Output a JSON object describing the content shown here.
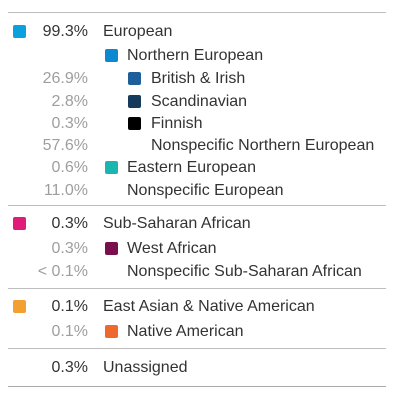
{
  "groups": [
    {
      "color": "#0aa1dc",
      "pct": "99.3%",
      "label": "European",
      "subs": [
        {
          "pct": "",
          "label": "Northern European",
          "color": "#0b88d0",
          "level": 1
        },
        {
          "pct": "26.9%",
          "label": "British & Irish",
          "color": "#1d5f9b",
          "level": 2
        },
        {
          "pct": "2.8%",
          "label": "Scandinavian",
          "color": "#163a5c",
          "level": 2
        },
        {
          "pct": "0.3%",
          "label": "Finnish",
          "color": "#000000",
          "level": 2
        },
        {
          "pct": "57.6%",
          "label": "Nonspecific Northern European",
          "color": "",
          "level": 2
        },
        {
          "pct": "0.6%",
          "label": "Eastern European",
          "color": "#1ab7b0",
          "level": 1
        },
        {
          "pct": "11.0%",
          "label": "Nonspecific European",
          "color": "",
          "level": 1
        }
      ]
    },
    {
      "color": "#e01c7a",
      "pct": "0.3%",
      "label": "Sub-Saharan African",
      "subs": [
        {
          "pct": "0.3%",
          "label": "West African",
          "color": "#7a0f4e",
          "level": 1
        },
        {
          "pct": "< 0.1%",
          "label": "Nonspecific Sub-Saharan African",
          "color": "",
          "level": 1
        }
      ]
    },
    {
      "color": "#f3a033",
      "pct": "0.1%",
      "label": "East Asian & Native American",
      "subs": [
        {
          "pct": "0.1%",
          "label": "Native American",
          "color": "#ee6a2c",
          "level": 1
        }
      ]
    },
    {
      "color": "",
      "pct": "0.3%",
      "label": "Unassigned",
      "subs": []
    }
  ]
}
